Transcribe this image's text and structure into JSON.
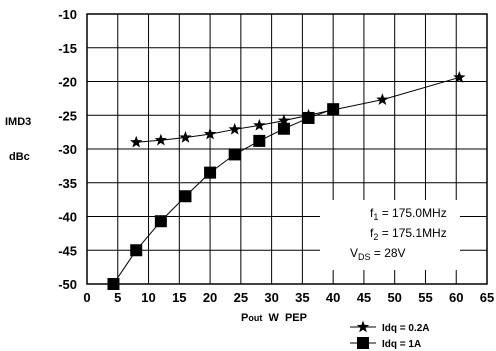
{
  "chart_data": {
    "type": "line",
    "title": "",
    "ylabel": [
      "IMD3",
      "dBc"
    ],
    "xlabel": {
      "main": "P",
      "sub": "out",
      "rest": "  W  PEP"
    },
    "xlim": [
      0,
      65
    ],
    "ylim": [
      -50,
      -10
    ],
    "xticks": [
      0,
      5,
      10,
      15,
      20,
      25,
      30,
      35,
      40,
      45,
      50,
      55,
      60,
      65
    ],
    "yticks": [
      -10,
      -15,
      -20,
      -25,
      -30,
      -35,
      -40,
      -45,
      -50
    ],
    "grid": true,
    "series": [
      {
        "name": "Idq = 0.2A",
        "marker": "star",
        "x": [
          8,
          12,
          16,
          20,
          24,
          28,
          32,
          36,
          40,
          48,
          60.5
        ],
        "y": [
          -29,
          -28.7,
          -28.3,
          -27.8,
          -27.1,
          -26.5,
          -25.8,
          -25,
          -24.2,
          -22.7,
          -19.4
        ]
      },
      {
        "name": "Idq = 1A",
        "marker": "square",
        "x": [
          4.3,
          8,
          12,
          16,
          20,
          24,
          28,
          32,
          36,
          40
        ],
        "y": [
          -50,
          -45,
          -40.7,
          -37,
          -33.5,
          -30.8,
          -28.8,
          -27,
          -25.4,
          -24.1
        ]
      }
    ],
    "annotations": [
      {
        "base": "f",
        "sub": "1",
        "rest": " = 175.0MHz"
      },
      {
        "base": "f",
        "sub": "2",
        "rest": " = 175.1MHz"
      },
      {
        "base": "V",
        "sub": "DS",
        "rest": " = 28V"
      }
    ],
    "legend_position": "bottom-right",
    "colors": {
      "line": "#000000",
      "grid": "#000000",
      "background": "#ffffff"
    }
  }
}
